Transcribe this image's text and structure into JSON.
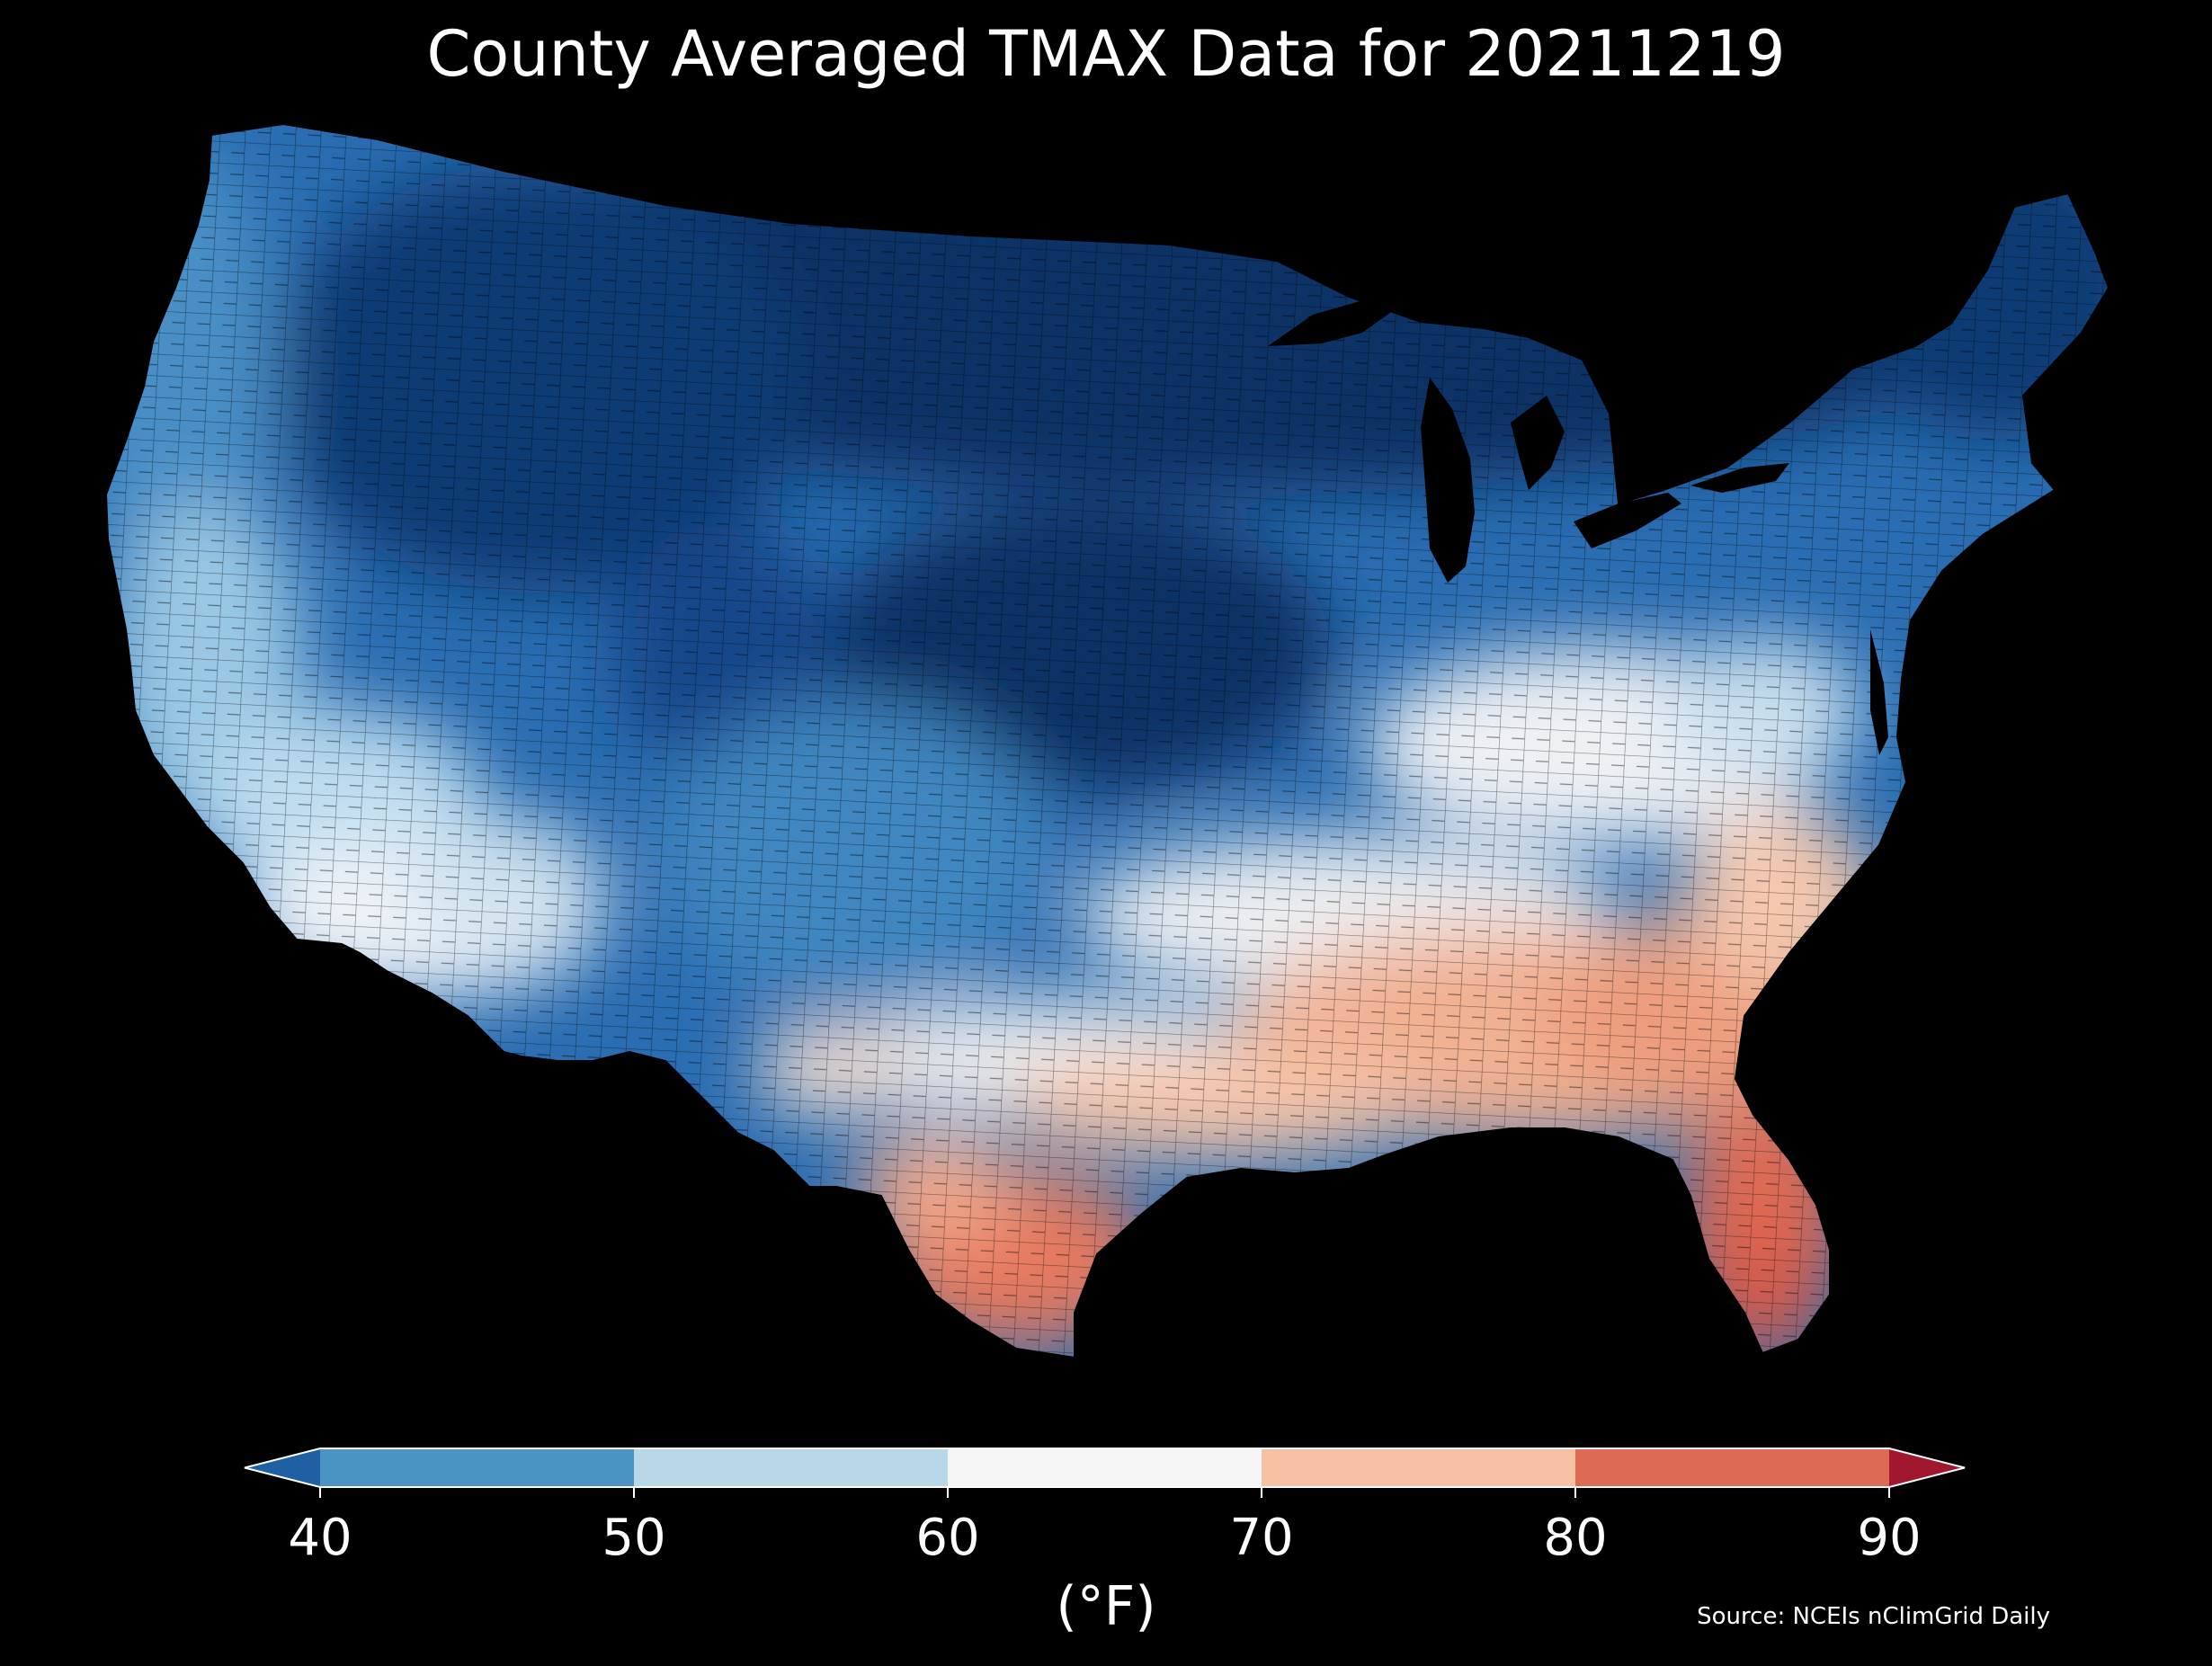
{
  "title": "County Averaged TMAX Data for 20211219",
  "colorbar": {
    "ticks": [
      "40",
      "50",
      "60",
      "70",
      "80",
      "90"
    ],
    "unit": "(°F)",
    "range": [
      40,
      90
    ],
    "extend": "both",
    "colors": {
      "under": "#1f5fa3",
      "bins": [
        "#4a94c4",
        "#b8d8ea",
        "#f5f5f5",
        "#f7c0a3",
        "#dd6a55"
      ],
      "over": "#a1172e"
    }
  },
  "source": "Source: NCEIs nClimGrid Daily",
  "map": {
    "region": "contiguous-united-states",
    "units": "county",
    "variable": "TMAX",
    "pattern": "coldest in the northern Rockies, northern plains, upper midwest and northeast (below 40°F); 40-60°F across the west coast, southwest, central plains and mid-atlantic; 60-70°F band from southern arizona through texas, the ohio valley to north carolina; 70-80°F across the deep south and coastal southeast; 80-90°F in south texas and florida"
  }
}
